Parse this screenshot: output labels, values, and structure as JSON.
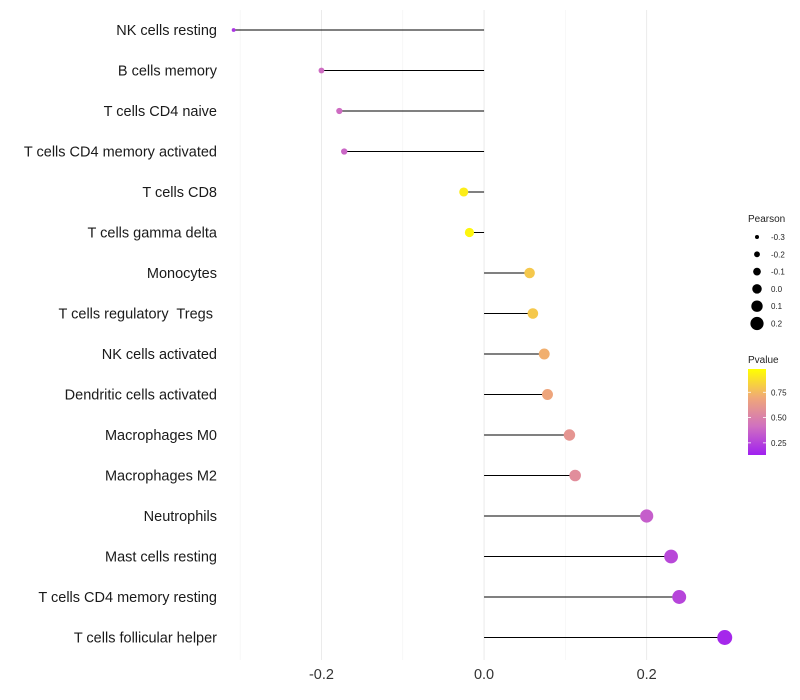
{
  "chart_data": {
    "type": "lollipop",
    "title": "",
    "xlabel": "",
    "ylabel": "",
    "xlim": [
      -0.31,
      0.3
    ],
    "xticks": [
      -0.2,
      0.0,
      0.2
    ],
    "xtick_labels": [
      "-0.2",
      "0.0",
      "0.2"
    ],
    "grid": true,
    "baseline": 0,
    "points": [
      {
        "category": "NK cells resting",
        "pearson": -0.308,
        "pvalue": 0.2
      },
      {
        "category": "B cells memory",
        "pearson": -0.2,
        "pvalue": 0.4
      },
      {
        "category": "T cells CD4 naive",
        "pearson": -0.178,
        "pvalue": 0.4
      },
      {
        "category": "T cells CD4 memory activated",
        "pearson": -0.172,
        "pvalue": 0.38
      },
      {
        "category": "T cells CD8",
        "pearson": -0.025,
        "pvalue": 0.92
      },
      {
        "category": "T cells gamma delta",
        "pearson": -0.018,
        "pvalue": 0.95
      },
      {
        "category": "Monocytes",
        "pearson": 0.056,
        "pvalue": 0.8
      },
      {
        "category": "T cells regulatory  Tregs ",
        "pearson": 0.06,
        "pvalue": 0.8
      },
      {
        "category": "NK cells activated",
        "pearson": 0.074,
        "pvalue": 0.72
      },
      {
        "category": "Dendritic cells activated",
        "pearson": 0.078,
        "pvalue": 0.68
      },
      {
        "category": "Macrophages M0",
        "pearson": 0.105,
        "pvalue": 0.6
      },
      {
        "category": "Macrophages M2",
        "pearson": 0.112,
        "pvalue": 0.56
      },
      {
        "category": "Neutrophils",
        "pearson": 0.2,
        "pvalue": 0.35
      },
      {
        "category": "Mast cells resting",
        "pearson": 0.23,
        "pvalue": 0.27
      },
      {
        "category": "T cells CD4 memory resting",
        "pearson": 0.24,
        "pvalue": 0.26
      },
      {
        "category": "T cells follicular helper",
        "pearson": 0.296,
        "pvalue": 0.16
      }
    ],
    "legend_size": {
      "title": "Pearson",
      "position": "right",
      "values": [
        -0.3,
        -0.2,
        -0.1,
        0.0,
        0.1,
        0.2
      ],
      "labels": [
        "-0.3",
        "-0.2",
        "-0.1",
        "0.0",
        "0.1",
        "0.2"
      ]
    },
    "legend_color": {
      "title": "Pvalue",
      "position": "right",
      "range": [
        0.13,
        0.98
      ],
      "ticks": [
        0.25,
        0.5,
        0.75
      ],
      "tick_labels": [
        "0.25",
        "0.50",
        "0.75"
      ],
      "colors": [
        "#A020F0",
        "#D070C0",
        "#F0A878",
        "#FFFF00"
      ]
    }
  }
}
